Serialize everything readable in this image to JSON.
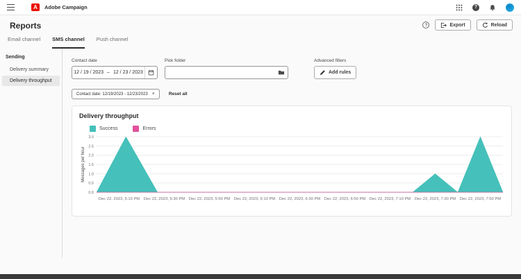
{
  "topbar": {
    "app_title": "Adobe Campaign",
    "icons": [
      "hamburger-icon",
      "adobe-logo",
      "app-grid-icon",
      "help-icon",
      "bell-icon",
      "avatar"
    ]
  },
  "header": {
    "title": "Reports",
    "export_label": "Export",
    "reload_label": "Reload"
  },
  "tabs": [
    {
      "label": "Email channel",
      "active": false
    },
    {
      "label": "SMS channel",
      "active": true
    },
    {
      "label": "Push channel",
      "active": false
    }
  ],
  "sidebar": {
    "section": "Sending",
    "items": [
      {
        "label": "Delivery summary",
        "active": false
      },
      {
        "label": "Delivery throughput",
        "active": true
      }
    ]
  },
  "filters": {
    "contact_date_label": "Contact date",
    "date_start": "12 / 19 / 2023",
    "date_separator": "–",
    "date_end": "12 / 23 / 2023",
    "pick_folder_label": "Pick folder",
    "pick_folder_value": "",
    "advanced_filters_label": "Advanced filters",
    "add_rules_label": "Add rules",
    "chip_label": "Contact date: 12/19/2023 - 12/23/2023",
    "reset_all_label": "Reset all"
  },
  "chart_card": {
    "title": "Delivery throughput"
  },
  "chart_data": {
    "type": "area",
    "title": "Delivery throughput",
    "ylabel": "Messages per hour",
    "ylim": [
      0,
      3
    ],
    "yticks": [
      "0.0",
      "0.5",
      "1.0",
      "1.5",
      "2.0",
      "2.5",
      "3.0"
    ],
    "grid": "horizontal",
    "legend_position": "top-left",
    "x_minutes_domain": [
      0,
      180
    ],
    "x_domain_note": "minutes after Dec 22, 2023, 5:00 PM",
    "xticks": [
      {
        "t": 10,
        "label": "Dec 22, 2023, 5:10 PM"
      },
      {
        "t": 30,
        "label": "Dec 22, 2023, 5:30 PM"
      },
      {
        "t": 50,
        "label": "Dec 22, 2023, 5:50 PM"
      },
      {
        "t": 70,
        "label": "Dec 22, 2023, 6:10 PM"
      },
      {
        "t": 90,
        "label": "Dec 22, 2023, 6:30 PM"
      },
      {
        "t": 110,
        "label": "Dec 22, 2023, 6:50 PM"
      },
      {
        "t": 130,
        "label": "Dec 22, 2023, 7:10 PM"
      },
      {
        "t": 150,
        "label": "Dec 22, 2023, 7:30 PM"
      },
      {
        "t": 170,
        "label": "Dec 22, 2023, 7:50 PM"
      }
    ],
    "series": [
      {
        "name": "Success",
        "color": "#45c0ba",
        "points": [
          [
            0,
            0
          ],
          [
            13,
            3
          ],
          [
            27,
            0
          ],
          [
            140,
            0
          ],
          [
            150,
            1
          ],
          [
            160,
            0
          ],
          [
            170,
            3
          ],
          [
            180,
            0
          ]
        ]
      },
      {
        "name": "Errors",
        "color": "#e2519b",
        "points": [
          [
            0,
            0
          ],
          [
            180,
            0
          ]
        ]
      }
    ]
  },
  "colors": {
    "logo_red": "#eb1000",
    "success_teal": "#45c0ba",
    "errors_pink": "#e2519b",
    "active_tab_underline": "#2c2c2c"
  }
}
